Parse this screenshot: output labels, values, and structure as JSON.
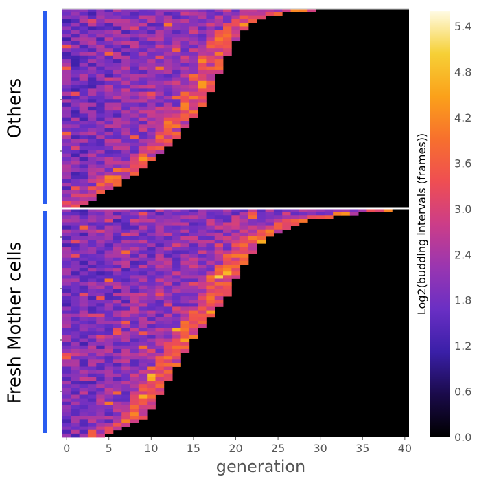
{
  "chart_data": {
    "type": "heatmap",
    "title": "",
    "xlabel": "generation",
    "ylabel": "",
    "x_ticks": [
      "0",
      "5",
      "10",
      "15",
      "20",
      "25",
      "30",
      "35",
      "40"
    ],
    "x_range": [
      0,
      40
    ],
    "groups": [
      {
        "name": "Others",
        "rows": 55,
        "lifespan_min": 2,
        "lifespan_max": 32,
        "lifespan_profile": [
          [
            0,
            2
          ],
          [
            3,
            4
          ],
          [
            10,
            9
          ],
          [
            14,
            11
          ],
          [
            20,
            14
          ],
          [
            30,
            17
          ],
          [
            35,
            18
          ],
          [
            40,
            19
          ],
          [
            44,
            20
          ],
          [
            48,
            21
          ],
          [
            50,
            22
          ],
          [
            53,
            24
          ],
          [
            55,
            32
          ]
        ]
      },
      {
        "name": "Fresh Mother cells",
        "rows": 65,
        "lifespan_min": 4,
        "lifespan_max": 41,
        "lifespan_profile": [
          [
            0,
            4
          ],
          [
            2,
            6
          ],
          [
            4,
            9
          ],
          [
            10,
            11
          ],
          [
            14,
            12
          ],
          [
            22,
            14
          ],
          [
            30,
            16
          ],
          [
            36,
            18
          ],
          [
            42,
            20
          ],
          [
            48,
            21
          ],
          [
            54,
            23
          ],
          [
            58,
            25
          ],
          [
            61,
            28
          ],
          [
            63,
            33
          ],
          [
            65,
            41
          ]
        ]
      }
    ],
    "colorbar": {
      "label": "Log2(budding intervals (frames))",
      "range": [
        0.0,
        5.6
      ],
      "ticks": [
        "0.0",
        "0.6",
        "1.2",
        "1.8",
        "2.4",
        "3.0",
        "3.6",
        "4.2",
        "4.8",
        "5.4"
      ]
    },
    "colormap": [
      "#000000",
      "#1a0a4a",
      "#3a1fa8",
      "#6a2fc4",
      "#9a36b0",
      "#cc3d88",
      "#ef4e52",
      "#f7702d",
      "#fba11a",
      "#f6d036",
      "#fffbe4"
    ]
  }
}
